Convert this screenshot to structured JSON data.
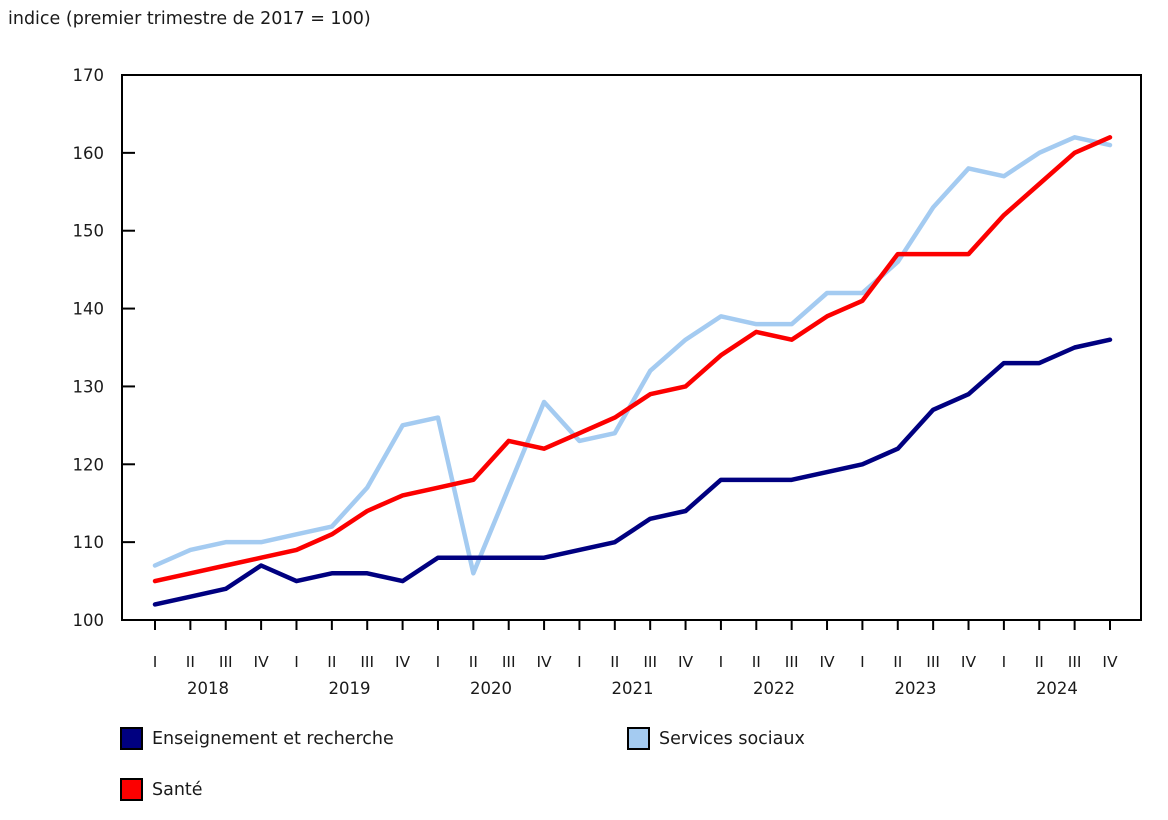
{
  "chart_data": {
    "type": "line",
    "title": "indice (premier trimestre de 2017 = 100)",
    "ylim": [
      100,
      170
    ],
    "yticks": [
      100,
      110,
      120,
      130,
      140,
      150,
      160,
      170
    ],
    "grid": false,
    "legend_position": "bottom",
    "x_ticks": [
      "I",
      "II",
      "III",
      "IV",
      "I",
      "II",
      "III",
      "IV",
      "I",
      "II",
      "III",
      "IV",
      "I",
      "II",
      "III",
      "IV",
      "I",
      "II",
      "III",
      "IV",
      "I",
      "II",
      "III",
      "IV",
      "I",
      "II",
      "III",
      "IV"
    ],
    "year_labels": [
      "2018",
      "2019",
      "2020",
      "2021",
      "2022",
      "2023",
      "2024"
    ],
    "draw_order": [
      1,
      0,
      2
    ],
    "series": [
      {
        "name": "Enseignement et recherche",
        "color": "#000080",
        "values": [
          102,
          103,
          104,
          107,
          105,
          106,
          106,
          105,
          108,
          108,
          108,
          108,
          109,
          110,
          113,
          114,
          118,
          118,
          118,
          119,
          120,
          122,
          127,
          129,
          133,
          133,
          135,
          136
        ]
      },
      {
        "name": "Services sociaux",
        "color": "#A4CBF1",
        "values": [
          107,
          109,
          110,
          110,
          111,
          112,
          117,
          125,
          126,
          106,
          117,
          128,
          123,
          124,
          132,
          136,
          139,
          138,
          138,
          142,
          142,
          146,
          153,
          158,
          157,
          160,
          162,
          161
        ]
      },
      {
        "name": "Santé",
        "color": "#FC0000",
        "values": [
          105,
          106,
          107,
          108,
          109,
          111,
          114,
          116,
          117,
          118,
          123,
          122,
          124,
          126,
          129,
          130,
          134,
          137,
          136,
          139,
          141,
          147,
          147,
          147,
          152,
          156,
          160,
          162
        ]
      }
    ]
  }
}
